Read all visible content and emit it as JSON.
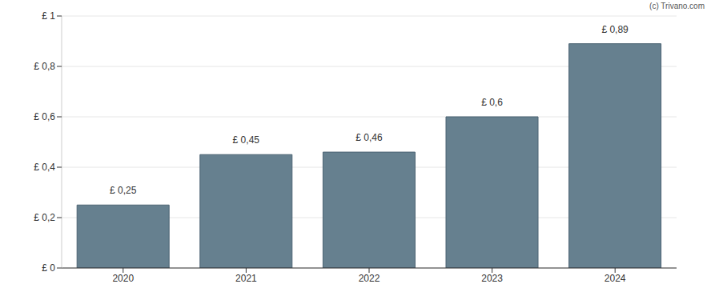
{
  "chart_data": {
    "type": "bar",
    "source": "(c) Trivano.com",
    "categories": [
      "2020",
      "2021",
      "2022",
      "2023",
      "2024"
    ],
    "values": [
      0.25,
      0.45,
      0.46,
      0.6,
      0.89
    ],
    "value_labels": [
      "£ 0,25",
      "£ 0,45",
      "£ 0,46",
      "£ 0,6",
      "£ 0,89"
    ],
    "color": "#66808f",
    "ylim": [
      0,
      1
    ],
    "yticks": [
      {
        "value": 0,
        "label": "£ 0"
      },
      {
        "value": 0.2,
        "label": "£ 0,2"
      },
      {
        "value": 0.4,
        "label": "£ 0,4"
      },
      {
        "value": 0.6,
        "label": "£ 0,6"
      },
      {
        "value": 0.8,
        "label": "£ 0,8"
      },
      {
        "value": 1,
        "label": "£ 1"
      }
    ],
    "grid": true,
    "data_labels": true
  }
}
